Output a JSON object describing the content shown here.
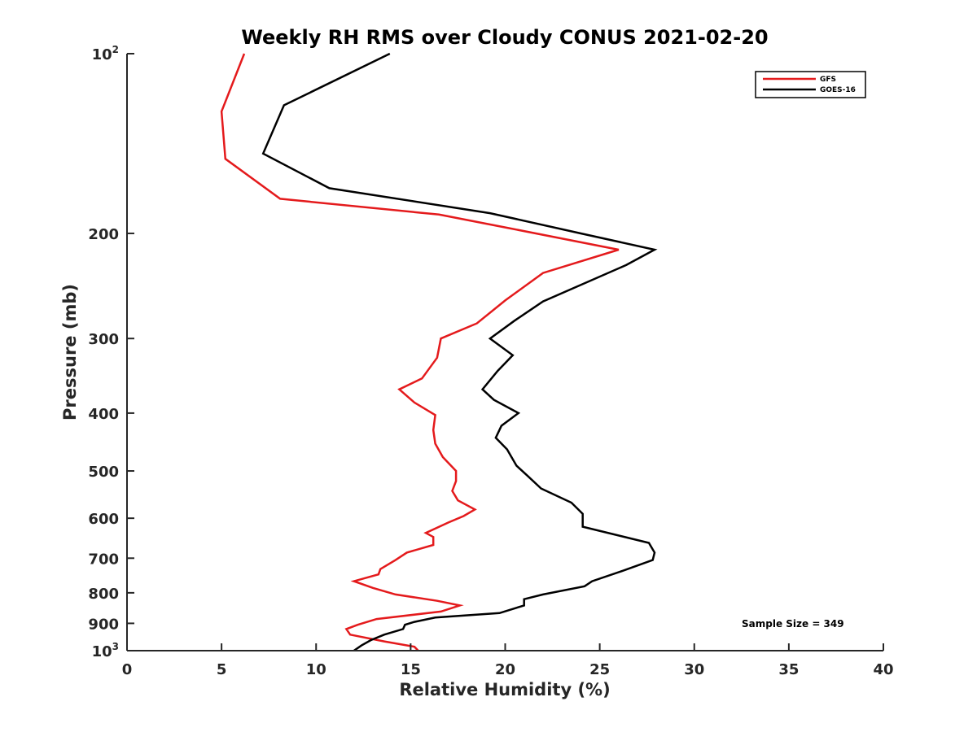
{
  "chart_data": {
    "type": "line",
    "title": "Weekly RH RMS over Cloudy CONUS 2021-02-20",
    "xlabel": "Relative Humidity (%)",
    "ylabel": "Pressure (mb)",
    "xlim": [
      0,
      40
    ],
    "ylim": [
      100,
      1000
    ],
    "yscale": "log",
    "y_reversed": true,
    "grid": false,
    "legend_position": "top-right",
    "xticks": [
      0,
      5,
      10,
      15,
      20,
      25,
      30,
      35,
      40
    ],
    "yticks": [
      {
        "value": 100,
        "label": "10",
        "sup": "2"
      },
      {
        "value": 200,
        "label": "200",
        "sup": ""
      },
      {
        "value": 300,
        "label": "300",
        "sup": ""
      },
      {
        "value": 400,
        "label": "400",
        "sup": ""
      },
      {
        "value": 500,
        "label": "500",
        "sup": ""
      },
      {
        "value": 600,
        "label": "600",
        "sup": ""
      },
      {
        "value": 700,
        "label": "700",
        "sup": ""
      },
      {
        "value": 800,
        "label": "800",
        "sup": ""
      },
      {
        "value": 900,
        "label": "900",
        "sup": ""
      },
      {
        "value": 1000,
        "label": "10",
        "sup": "3"
      }
    ],
    "series": [
      {
        "name": "GFS",
        "color": "#e41a1c",
        "points": [
          [
            6.2,
            100
          ],
          [
            5.0,
            125
          ],
          [
            5.2,
            150
          ],
          [
            8.1,
            175
          ],
          [
            16.5,
            186
          ],
          [
            20.2,
            196
          ],
          [
            26.0,
            213
          ],
          [
            22.0,
            233
          ],
          [
            20.0,
            259
          ],
          [
            18.5,
            283
          ],
          [
            16.6,
            300
          ],
          [
            16.4,
            323
          ],
          [
            15.6,
            350
          ],
          [
            14.4,
            365
          ],
          [
            15.2,
            384
          ],
          [
            16.3,
            403
          ],
          [
            16.2,
            427
          ],
          [
            16.3,
            450
          ],
          [
            16.7,
            474
          ],
          [
            17.4,
            500
          ],
          [
            17.4,
            520
          ],
          [
            17.2,
            540
          ],
          [
            17.5,
            560
          ],
          [
            18.4,
            580
          ],
          [
            17.8,
            595
          ],
          [
            17.0,
            610
          ],
          [
            15.8,
            635
          ],
          [
            16.2,
            645
          ],
          [
            16.2,
            665
          ],
          [
            14.8,
            685
          ],
          [
            14.2,
            705
          ],
          [
            13.4,
            730
          ],
          [
            13.3,
            745
          ],
          [
            12.0,
            765
          ],
          [
            13.0,
            785
          ],
          [
            14.2,
            805
          ],
          [
            16.4,
            825
          ],
          [
            17.6,
            840
          ],
          [
            16.6,
            860
          ],
          [
            13.2,
            885
          ],
          [
            12.2,
            905
          ],
          [
            11.6,
            920
          ],
          [
            11.8,
            940
          ],
          [
            13.6,
            965
          ],
          [
            15.2,
            985
          ],
          [
            15.4,
            1000
          ]
        ]
      },
      {
        "name": "GOES-16",
        "color": "#000000",
        "points": [
          [
            13.9,
            100
          ],
          [
            8.3,
            122
          ],
          [
            7.2,
            147
          ],
          [
            10.7,
            168
          ],
          [
            19.2,
            185
          ],
          [
            24.0,
            200
          ],
          [
            27.9,
            213
          ],
          [
            26.4,
            226
          ],
          [
            22.0,
            260
          ],
          [
            20.5,
            280
          ],
          [
            19.2,
            300
          ],
          [
            20.4,
            320
          ],
          [
            19.6,
            340
          ],
          [
            18.8,
            365
          ],
          [
            19.4,
            380
          ],
          [
            20.7,
            400
          ],
          [
            19.8,
            420
          ],
          [
            19.5,
            440
          ],
          [
            20.1,
            460
          ],
          [
            20.6,
            490
          ],
          [
            21.2,
            510
          ],
          [
            21.9,
            535
          ],
          [
            23.5,
            565
          ],
          [
            24.1,
            590
          ],
          [
            24.1,
            620
          ],
          [
            27.6,
            660
          ],
          [
            27.9,
            685
          ],
          [
            27.8,
            705
          ],
          [
            26.2,
            735
          ],
          [
            24.6,
            765
          ],
          [
            24.2,
            780
          ],
          [
            22.0,
            805
          ],
          [
            21.0,
            820
          ],
          [
            21.0,
            840
          ],
          [
            19.7,
            865
          ],
          [
            16.3,
            880
          ],
          [
            15.2,
            895
          ],
          [
            14.7,
            905
          ],
          [
            14.6,
            920
          ],
          [
            13.6,
            940
          ],
          [
            12.9,
            960
          ],
          [
            12.4,
            980
          ],
          [
            12.0,
            1000
          ]
        ]
      }
    ],
    "annotation": "Sample Size = 349"
  }
}
